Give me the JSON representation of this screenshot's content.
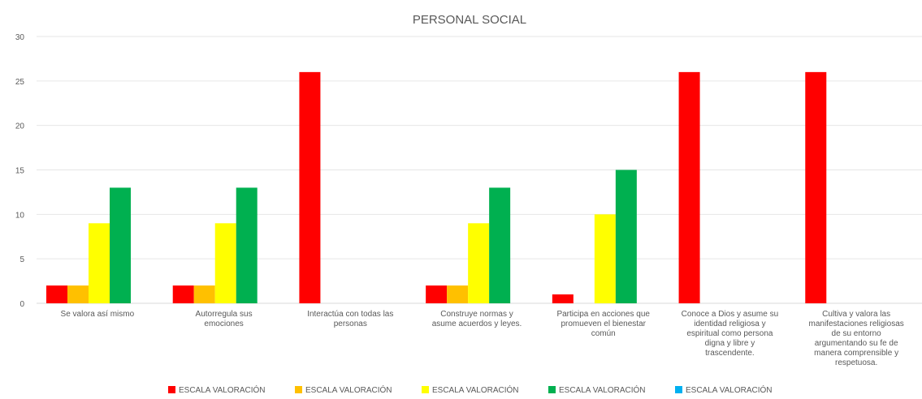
{
  "chart_data": {
    "type": "bar",
    "title": "PERSONAL SOCIAL",
    "xlabel": "",
    "ylabel": "",
    "ylim": [
      0,
      30
    ],
    "yticks": [
      0,
      5,
      10,
      15,
      20,
      25,
      30
    ],
    "grid": true,
    "legend_position": "bottom",
    "categories": [
      [
        "Se valora así mismo"
      ],
      [
        "Autorregula sus",
        "emociones"
      ],
      [
        "Interactúa con todas las",
        "personas"
      ],
      [
        "Construye normas y",
        "asume acuerdos y leyes."
      ],
      [
        "Participa en acciones que",
        "promueven el bienestar",
        "común"
      ],
      [
        "Conoce a Dios y asume su",
        "identidad religiosa y",
        "espiritual como persona",
        "digna y libre y",
        "trascendente."
      ],
      [
        "Cultiva y valora las",
        "manifestaciones religiosas",
        "de su entorno",
        "argumentando su fe de",
        "manera comprensible y",
        "respetuosa."
      ]
    ],
    "series": [
      {
        "name": "ESCALA VALORACIÓN",
        "color": "#ff0000",
        "values": [
          2,
          2,
          26,
          2,
          1,
          26,
          26
        ]
      },
      {
        "name": "ESCALA VALORACIÓN",
        "color": "#ffc000",
        "values": [
          2,
          2,
          0,
          2,
          0,
          0,
          0
        ]
      },
      {
        "name": "ESCALA VALORACIÓN",
        "color": "#ffff00",
        "values": [
          9,
          9,
          0,
          9,
          10,
          0,
          0
        ]
      },
      {
        "name": "ESCALA VALORACIÓN",
        "color": "#00b050",
        "values": [
          13,
          13,
          0,
          13,
          15,
          0,
          0
        ]
      },
      {
        "name": "ESCALA VALORACIÓN",
        "color": "#00b0f0",
        "values": [
          0,
          0,
          0,
          0,
          0,
          0,
          0
        ]
      }
    ]
  }
}
